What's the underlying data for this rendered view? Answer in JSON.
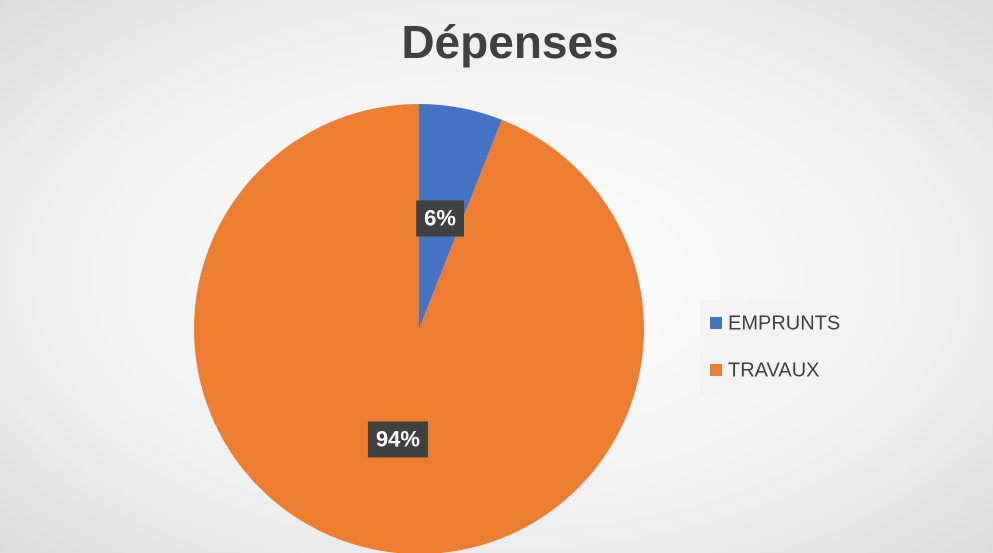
{
  "chart_data": {
    "type": "pie",
    "title": "Dépenses",
    "categories": [
      "EMPRUNTS",
      "TRAVAUX"
    ],
    "values": [
      6,
      94
    ],
    "value_labels": [
      "6%",
      "94%"
    ],
    "colors": [
      "#4472c4",
      "#ed7d31"
    ],
    "legend": "right"
  }
}
